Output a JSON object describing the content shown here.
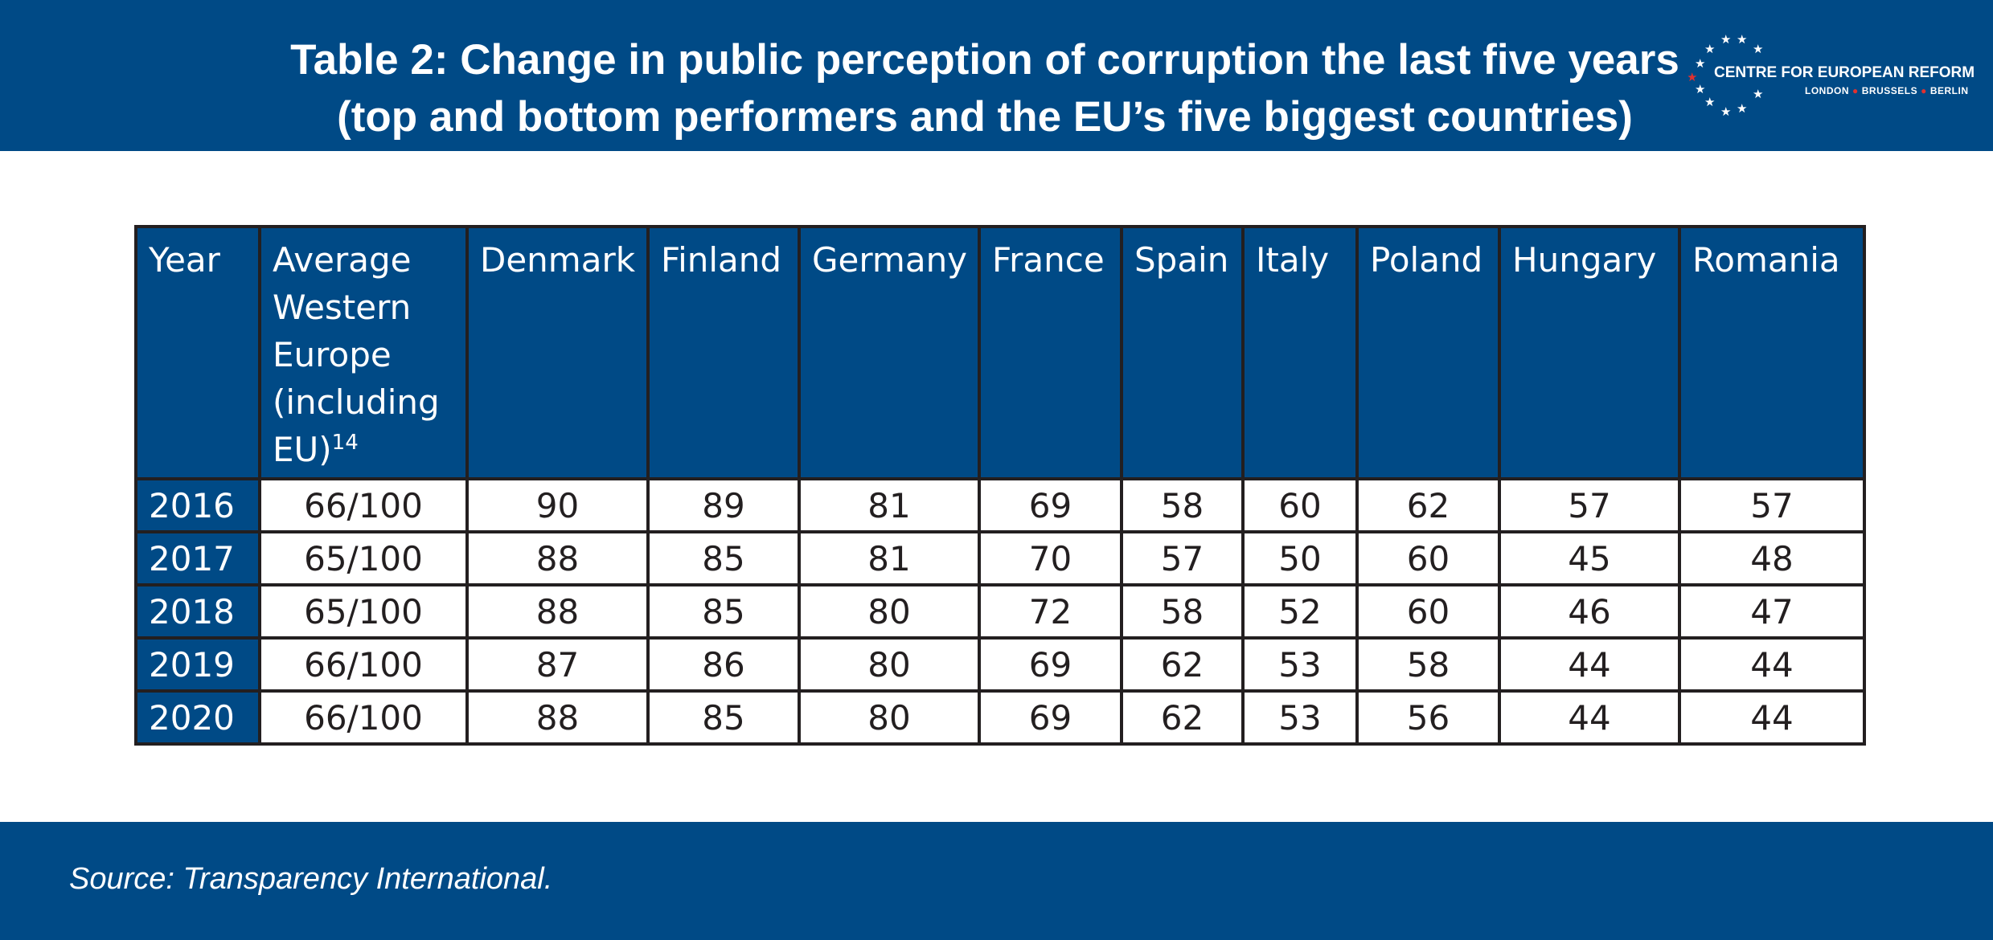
{
  "header": {
    "title_line1": "Table 2: Change in public perception of corruption the last five years",
    "title_line2": "(top and bottom performers and the EU’s five biggest countries)"
  },
  "logo": {
    "name": "CENTRE FOR EUROPEAN REFORM",
    "city1": "LONDON",
    "city2": "BRUSSELS",
    "city3": "BERLIN"
  },
  "chart_data": {
    "type": "table",
    "columns": [
      "Year",
      "Average Western Europe (including EU)",
      "Denmark",
      "Finland",
      "Germany",
      "France",
      "Spain",
      "Italy",
      "Poland",
      "Hungary",
      "Romania"
    ],
    "header_footnote": "14",
    "rows": [
      [
        "2016",
        "66/100",
        "90",
        "89",
        "81",
        "69",
        "58",
        "60",
        "62",
        "57",
        "57"
      ],
      [
        "2017",
        "65/100",
        "88",
        "85",
        "81",
        "70",
        "57",
        "50",
        "60",
        "45",
        "48"
      ],
      [
        "2018",
        "65/100",
        "88",
        "85",
        "80",
        "72",
        "58",
        "52",
        "60",
        "46",
        "47"
      ],
      [
        "2019",
        "66/100",
        "87",
        "86",
        "80",
        "69",
        "62",
        "53",
        "58",
        "44",
        "44"
      ],
      [
        "2020",
        "66/100",
        "88",
        "85",
        "80",
        "69",
        "62",
        "53",
        "56",
        "44",
        "44"
      ]
    ]
  },
  "footer": {
    "source": "Source: Transparency International."
  },
  "colors": {
    "brand_blue": "#004a86",
    "logo_red": "#e0312f",
    "border": "#231f20"
  }
}
